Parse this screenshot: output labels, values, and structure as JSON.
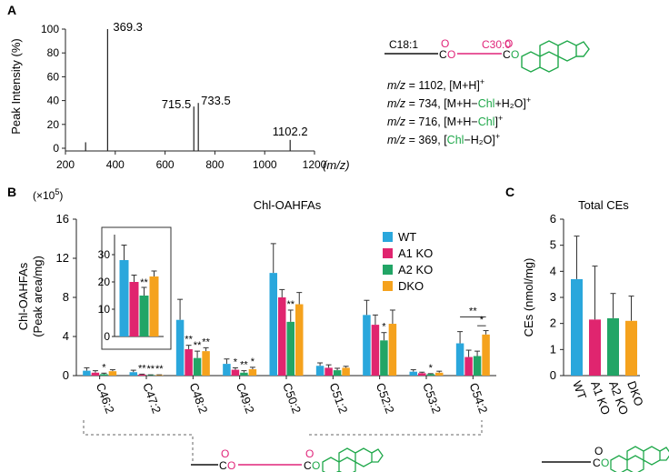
{
  "colors": {
    "wt": "#2aa7dc",
    "a1ko": "#e0256f",
    "a2ko": "#22a566",
    "dko": "#f5a21d",
    "chl": "#1fa84a",
    "oahfa": "#e0257a",
    "bond": "#111111"
  },
  "panel_a": {
    "label": "A",
    "ylabel": "Peak Intensity (%)",
    "xlabel": "(m/z)",
    "structure": {
      "c18_label": "C18:1",
      "c30_label": "C30:0",
      "oxygen": "O",
      "carbon": "C"
    },
    "annotations": [
      {
        "mz": "m/z",
        "eq": " = 1102, [M+H]",
        "sup": "+",
        "chl": "",
        "tail": ""
      },
      {
        "mz": "m/z",
        "eq": " = 734, [M+H−",
        "chl": "Chl",
        "tail": "+H₂O]",
        "sup": "+"
      },
      {
        "mz": "m/z",
        "eq": " = 716, [M+H−",
        "chl": "Chl",
        "tail": "]",
        "sup": "+"
      },
      {
        "mz": "m/z",
        "eq": " = 369, [",
        "chl": "Chl",
        "tail": "−H₂O]",
        "sup": "+"
      }
    ]
  },
  "panel_b": {
    "label": "B",
    "title": "Chl-OAHFAs",
    "scale_label": "(×10",
    "scale_exp": "5",
    "scale_close": ")",
    "ylabel_line1": "Chl-OAHFAs",
    "ylabel_line2": "(Peak area/mg)",
    "legend": [
      "WT",
      "A1 KO",
      "A2 KO",
      "DKO"
    ]
  },
  "panel_c": {
    "label": "C",
    "title": "Total CEs",
    "ylabel": "CEs (nmol/mg)"
  },
  "chart_data": [
    {
      "id": "spectrum",
      "type": "bar",
      "title": "",
      "xlabel": "(m/z)",
      "ylabel": "Peak Intensity (%)",
      "xlim": [
        200,
        1200
      ],
      "ylim": [
        0,
        100
      ],
      "xticks": [
        200,
        400,
        600,
        800,
        1000,
        1200
      ],
      "yticks": [
        0,
        20,
        40,
        60,
        80,
        100
      ],
      "peaks": [
        {
          "mz": 281,
          "intensity": 5,
          "label": ""
        },
        {
          "mz": 369.3,
          "intensity": 100,
          "label": "369.3"
        },
        {
          "mz": 715.5,
          "intensity": 35,
          "label": "715.5"
        },
        {
          "mz": 733.5,
          "intensity": 38,
          "label": "733.5"
        },
        {
          "mz": 1102.2,
          "intensity": 7,
          "label": "1102.2"
        }
      ]
    },
    {
      "id": "oahfa",
      "type": "bar",
      "title": "Chl-OAHFAs",
      "ylabel": "Chl-OAHFAs (Peak area/mg) (×10^5)",
      "ylim": [
        0,
        16
      ],
      "yticks": [
        0,
        4,
        8,
        12,
        16
      ],
      "categories": [
        "C46:2",
        "C47:2",
        "C48:2",
        "C49:2",
        "C50:2",
        "C51:2",
        "C52:2",
        "C53:2",
        "C54:2"
      ],
      "series": [
        {
          "name": "WT",
          "values": [
            0.5,
            0.35,
            5.7,
            1.2,
            10.5,
            1.0,
            6.2,
            0.4,
            3.3
          ],
          "errors": [
            0.3,
            0.2,
            2.1,
            0.5,
            3.0,
            0.3,
            1.5,
            0.2,
            1.2
          ]
        },
        {
          "name": "A1 KO",
          "values": [
            0.3,
            0.1,
            2.7,
            0.6,
            8.0,
            0.8,
            5.2,
            0.25,
            1.9
          ],
          "errors": [
            0.2,
            0.05,
            0.4,
            0.2,
            0.8,
            0.3,
            1.0,
            0.1,
            0.7
          ]
        },
        {
          "name": "A2 KO",
          "values": [
            0.15,
            0.05,
            1.8,
            0.3,
            5.5,
            0.55,
            3.6,
            0.15,
            2.0
          ],
          "errors": [
            0.1,
            0.03,
            0.7,
            0.2,
            1.2,
            0.2,
            0.8,
            0.05,
            0.5
          ]
        },
        {
          "name": "DKO",
          "values": [
            0.45,
            0.05,
            2.5,
            0.65,
            7.3,
            0.8,
            5.3,
            0.3,
            4.2
          ],
          "errors": [
            0.15,
            0.03,
            0.35,
            0.2,
            1.2,
            0.15,
            1.4,
            0.15,
            0.4
          ]
        }
      ],
      "significance": [
        {
          "category": "C46:2",
          "series": 2,
          "label": "*"
        },
        {
          "category": "C47:2",
          "series": 1,
          "label": "**"
        },
        {
          "category": "C47:2",
          "series": 2,
          "label": "**"
        },
        {
          "category": "C47:2",
          "series": 3,
          "label": "**"
        },
        {
          "category": "C48:2",
          "series": 1,
          "label": "**"
        },
        {
          "category": "C48:2",
          "series": 2,
          "label": "**"
        },
        {
          "category": "C48:2",
          "series": 3,
          "label": "**"
        },
        {
          "category": "C49:2",
          "series": 1,
          "label": "*"
        },
        {
          "category": "C49:2",
          "series": 2,
          "label": "**"
        },
        {
          "category": "C49:2",
          "series": 3,
          "label": "*"
        },
        {
          "category": "C50:2",
          "series": 2,
          "label": "**"
        },
        {
          "category": "C52:2",
          "series": 2,
          "label": "*"
        },
        {
          "category": "C53:2",
          "series": 2,
          "label": "*"
        }
      ],
      "comparisons": [
        {
          "category": "C54:2",
          "from": 0,
          "to": 3,
          "label": "**"
        },
        {
          "category": "C54:2",
          "from": 2,
          "to": 3,
          "label": "*"
        }
      ],
      "inset": {
        "ylim": [
          0,
          40
        ],
        "yticks": [
          0,
          10,
          20,
          30
        ],
        "values": [
          28,
          20,
          15,
          22
        ],
        "errors": [
          5.5,
          2.5,
          3.0,
          2.0
        ],
        "significance": [
          {
            "series": 2,
            "label": "**"
          }
        ]
      }
    },
    {
      "id": "total_ce",
      "type": "bar",
      "title": "Total CEs",
      "ylabel": "CEs (nmol/mg)",
      "ylim": [
        0,
        6
      ],
      "yticks": [
        0,
        1,
        2,
        3,
        4,
        5,
        6
      ],
      "categories": [
        "WT",
        "A1 KO",
        "A2 KO",
        "DKO"
      ],
      "values": [
        3.7,
        2.15,
        2.2,
        2.1
      ],
      "errors": [
        1.65,
        2.05,
        0.95,
        0.95
      ]
    }
  ]
}
